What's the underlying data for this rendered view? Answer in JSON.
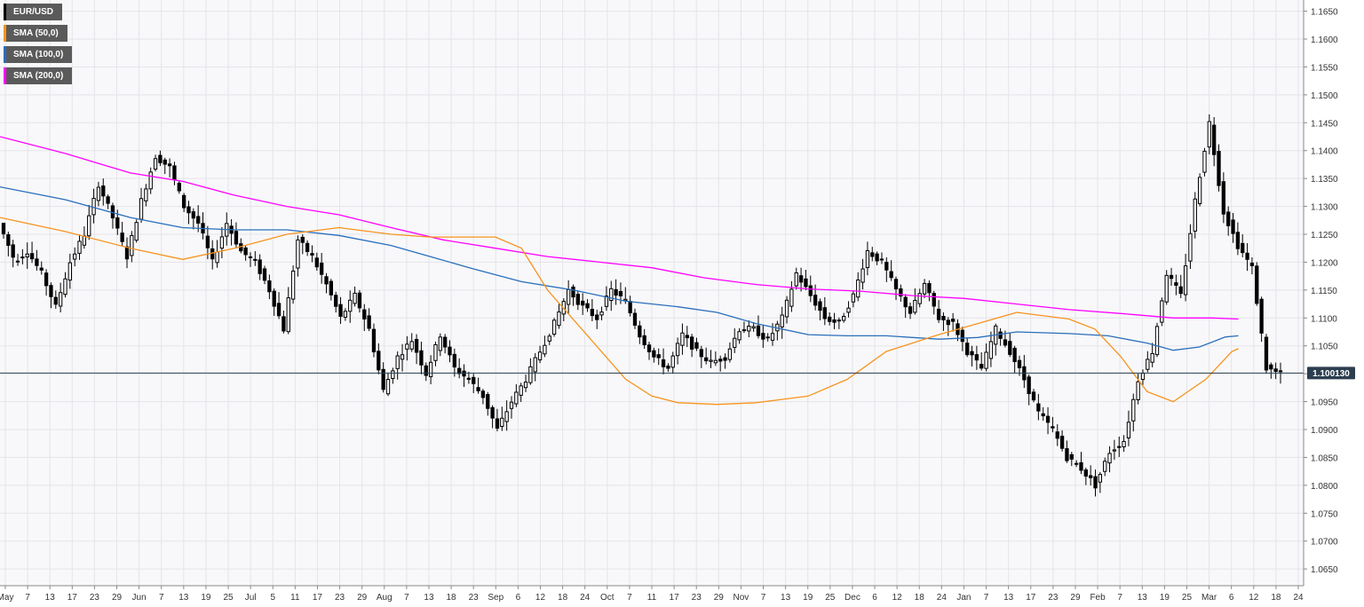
{
  "legend": [
    {
      "label": "EUR/USD",
      "color": "#000000"
    },
    {
      "label": "SMA (50,0)",
      "color": "#f7931e"
    },
    {
      "label": "SMA (100,0)",
      "color": "#2a6ebb"
    },
    {
      "label": "SMA (200,0)",
      "color": "#ff00ff"
    }
  ],
  "last_price": {
    "label": "1.100130",
    "value": 1.10013,
    "color": "#2c3e50"
  },
  "chart_data": {
    "type": "candlestick",
    "title": "",
    "ylim": [
      1.062,
      1.167
    ],
    "grid": true,
    "y_ticks": [
      1.165,
      1.16,
      1.155,
      1.15,
      1.145,
      1.14,
      1.135,
      1.13,
      1.125,
      1.12,
      1.115,
      1.11,
      1.105,
      1.1,
      1.095,
      1.09,
      1.085,
      1.08,
      1.075,
      1.07,
      1.065
    ],
    "y_tick_labels": [
      "1.1650",
      "1.1600",
      "1.1550",
      "1.1500",
      "1.1450",
      "1.1400",
      "1.1350",
      "1.1300",
      "1.1250",
      "1.1200",
      "1.1150",
      "1.1100",
      "1.1050",
      "1.1000",
      "1.0950",
      "1.0900",
      "1.0850",
      "1.0800",
      "1.0750",
      "1.0700",
      "1.0650"
    ],
    "x_tick_labels": [
      "May",
      "7",
      "13",
      "17",
      "23",
      "29",
      "Jun",
      "7",
      "13",
      "19",
      "25",
      "Jul",
      "5",
      "11",
      "17",
      "23",
      "29",
      "Aug",
      "7",
      "13",
      "18",
      "23",
      "Sep",
      "6",
      "12",
      "18",
      "24",
      "Oct",
      "7",
      "11",
      "17",
      "23",
      "29",
      "Nov",
      "7",
      "13",
      "19",
      "25",
      "Dec",
      "6",
      "12",
      "18",
      "24",
      "Jan",
      "7",
      "13",
      "17",
      "23",
      "29",
      "Feb",
      "7",
      "13",
      "19",
      "25",
      "Mar",
      "6",
      "12",
      "18",
      "24"
    ],
    "ohlc_anchors": [
      [
        1.127,
        1.127,
        1.117,
        1.121
      ],
      [
        1.12,
        1.125,
        1.118,
        1.122
      ],
      [
        1.122,
        1.126,
        1.115,
        1.118
      ],
      [
        1.118,
        1.12,
        1.108,
        1.112
      ],
      [
        1.112,
        1.122,
        1.111,
        1.12
      ],
      [
        1.12,
        1.129,
        1.118,
        1.125
      ],
      [
        1.125,
        1.135,
        1.124,
        1.134
      ],
      [
        1.134,
        1.135,
        1.126,
        1.128
      ],
      [
        1.128,
        1.13,
        1.118,
        1.121
      ],
      [
        1.121,
        1.135,
        1.12,
        1.131
      ],
      [
        1.131,
        1.141,
        1.13,
        1.139
      ],
      [
        1.139,
        1.14,
        1.133,
        1.137
      ],
      [
        1.137,
        1.138,
        1.129,
        1.13
      ],
      [
        1.13,
        1.131,
        1.125,
        1.127
      ],
      [
        1.127,
        1.129,
        1.118,
        1.12
      ],
      [
        1.12,
        1.129,
        1.119,
        1.127
      ],
      [
        1.127,
        1.128,
        1.12,
        1.122
      ],
      [
        1.122,
        1.125,
        1.118,
        1.12
      ],
      [
        1.12,
        1.122,
        1.112,
        1.115
      ],
      [
        1.115,
        1.117,
        1.104,
        1.108
      ],
      [
        1.108,
        1.125,
        1.103,
        1.124
      ],
      [
        1.124,
        1.125,
        1.12,
        1.121
      ],
      [
        1.121,
        1.122,
        1.114,
        1.116
      ],
      [
        1.116,
        1.117,
        1.108,
        1.11
      ],
      [
        1.11,
        1.116,
        1.107,
        1.114
      ],
      [
        1.114,
        1.115,
        1.106,
        1.108
      ],
      [
        1.108,
        1.109,
        1.094,
        1.097
      ],
      [
        1.097,
        1.104,
        1.093,
        1.103
      ],
      [
        1.103,
        1.108,
        1.1,
        1.106
      ],
      [
        1.106,
        1.11,
        1.097,
        1.1
      ],
      [
        1.1,
        1.11,
        1.093,
        1.107
      ],
      [
        1.107,
        1.108,
        1.099,
        1.101
      ],
      [
        1.101,
        1.104,
        1.096,
        1.099
      ],
      [
        1.099,
        1.1,
        1.094,
        1.096
      ],
      [
        1.096,
        1.097,
        1.088,
        1.09
      ],
      [
        1.09,
        1.097,
        1.089,
        1.095
      ],
      [
        1.095,
        1.1,
        1.094,
        1.099
      ],
      [
        1.099,
        1.105,
        1.098,
        1.104
      ],
      [
        1.104,
        1.111,
        1.103,
        1.109
      ],
      [
        1.109,
        1.118,
        1.108,
        1.115
      ],
      [
        1.115,
        1.116,
        1.11,
        1.112
      ],
      [
        1.112,
        1.114,
        1.108,
        1.11
      ],
      [
        1.11,
        1.117,
        1.109,
        1.115
      ],
      [
        1.115,
        1.118,
        1.112,
        1.113
      ],
      [
        1.113,
        1.114,
        1.105,
        1.107
      ],
      [
        1.107,
        1.108,
        1.102,
        1.103
      ],
      [
        1.103,
        1.105,
        1.099,
        1.101
      ],
      [
        1.101,
        1.109,
        1.1,
        1.107
      ],
      [
        1.107,
        1.109,
        1.103,
        1.104
      ],
      [
        1.104,
        1.105,
        1.101,
        1.102
      ],
      [
        1.102,
        1.105,
        1.099,
        1.103
      ],
      [
        1.103,
        1.11,
        1.102,
        1.108
      ],
      [
        1.108,
        1.111,
        1.106,
        1.108
      ],
      [
        1.108,
        1.113,
        1.104,
        1.106
      ],
      [
        1.106,
        1.112,
        1.105,
        1.11
      ],
      [
        1.11,
        1.12,
        1.109,
        1.118
      ],
      [
        1.118,
        1.119,
        1.112,
        1.114
      ],
      [
        1.114,
        1.116,
        1.108,
        1.11
      ],
      [
        1.11,
        1.111,
        1.108,
        1.109
      ],
      [
        1.109,
        1.115,
        1.109,
        1.114
      ],
      [
        1.114,
        1.124,
        1.113,
        1.122
      ],
      [
        1.122,
        1.123,
        1.119,
        1.12
      ],
      [
        1.12,
        1.121,
        1.113,
        1.115
      ],
      [
        1.115,
        1.116,
        1.109,
        1.111
      ],
      [
        1.111,
        1.117,
        1.11,
        1.116
      ],
      [
        1.116,
        1.117,
        1.109,
        1.11
      ],
      [
        1.11,
        1.111,
        1.106,
        1.109
      ],
      [
        1.109,
        1.11,
        1.103,
        1.104
      ],
      [
        1.104,
        1.105,
        1.1,
        1.101
      ],
      [
        1.101,
        1.109,
        1.1,
        1.108
      ],
      [
        1.108,
        1.109,
        1.103,
        1.104
      ],
      [
        1.104,
        1.105,
        1.097,
        1.099
      ],
      [
        1.099,
        1.1,
        1.091,
        1.093
      ],
      [
        1.093,
        1.094,
        1.088,
        1.09
      ],
      [
        1.09,
        1.091,
        1.084,
        1.085
      ],
      [
        1.085,
        1.086,
        1.081,
        1.083
      ],
      [
        1.083,
        1.084,
        1.078,
        1.08
      ],
      [
        1.08,
        1.087,
        1.078,
        1.086
      ],
      [
        1.086,
        1.089,
        1.084,
        1.088
      ],
      [
        1.088,
        1.1,
        1.087,
        1.099
      ],
      [
        1.099,
        1.106,
        1.098,
        1.104
      ],
      [
        1.104,
        1.12,
        1.103,
        1.118
      ],
      [
        1.118,
        1.124,
        1.11,
        1.114
      ],
      [
        1.114,
        1.134,
        1.113,
        1.131
      ],
      [
        1.131,
        1.149,
        1.129,
        1.145
      ],
      [
        1.145,
        1.146,
        1.127,
        1.129
      ],
      [
        1.129,
        1.13,
        1.118,
        1.123
      ],
      [
        1.123,
        1.125,
        1.109,
        1.119
      ],
      [
        1.119,
        1.12,
        1.1,
        1.101
      ],
      [
        1.101,
        1.102,
        1.096,
        1.1
      ]
    ],
    "sma50_anchors": [
      [
        0,
        1.128
      ],
      [
        0.05,
        1.1255
      ],
      [
        0.1,
        1.1225
      ],
      [
        0.14,
        1.1205
      ],
      [
        0.18,
        1.1225
      ],
      [
        0.22,
        1.125
      ],
      [
        0.26,
        1.1262
      ],
      [
        0.3,
        1.125
      ],
      [
        0.33,
        1.1245
      ],
      [
        0.36,
        1.1245
      ],
      [
        0.38,
        1.1245
      ],
      [
        0.4,
        1.1225
      ],
      [
        0.42,
        1.115
      ],
      [
        0.45,
        1.107
      ],
      [
        0.48,
        1.099
      ],
      [
        0.5,
        1.096
      ],
      [
        0.52,
        1.0948
      ],
      [
        0.55,
        1.0945
      ],
      [
        0.58,
        1.0948
      ],
      [
        0.62,
        1.096
      ],
      [
        0.65,
        1.099
      ],
      [
        0.68,
        1.104
      ],
      [
        0.72,
        1.107
      ],
      [
        0.75,
        1.109
      ],
      [
        0.78,
        1.111
      ],
      [
        0.82,
        1.1098
      ],
      [
        0.84,
        1.108
      ],
      [
        0.86,
        1.103
      ],
      [
        0.88,
        1.0968
      ],
      [
        0.9,
        1.095
      ],
      [
        0.925,
        1.099
      ],
      [
        0.945,
        1.104
      ],
      [
        0.95,
        1.1045
      ]
    ],
    "sma100_anchors": [
      [
        0,
        1.1335
      ],
      [
        0.05,
        1.1312
      ],
      [
        0.1,
        1.128
      ],
      [
        0.14,
        1.1262
      ],
      [
        0.18,
        1.1258
      ],
      [
        0.22,
        1.1258
      ],
      [
        0.26,
        1.1248
      ],
      [
        0.3,
        1.123
      ],
      [
        0.33,
        1.121
      ],
      [
        0.36,
        1.119
      ],
      [
        0.4,
        1.1165
      ],
      [
        0.44,
        1.115
      ],
      [
        0.48,
        1.113
      ],
      [
        0.52,
        1.112
      ],
      [
        0.55,
        1.111
      ],
      [
        0.58,
        1.109
      ],
      [
        0.62,
        1.107
      ],
      [
        0.65,
        1.1068
      ],
      [
        0.68,
        1.1068
      ],
      [
        0.72,
        1.1062
      ],
      [
        0.75,
        1.1065
      ],
      [
        0.78,
        1.1075
      ],
      [
        0.82,
        1.1072
      ],
      [
        0.85,
        1.1068
      ],
      [
        0.88,
        1.1055
      ],
      [
        0.9,
        1.1042
      ],
      [
        0.92,
        1.1048
      ],
      [
        0.94,
        1.1066
      ],
      [
        0.95,
        1.1068
      ]
    ],
    "sma200_anchors": [
      [
        0,
        1.1425
      ],
      [
        0.05,
        1.1395
      ],
      [
        0.1,
        1.136
      ],
      [
        0.14,
        1.1345
      ],
      [
        0.18,
        1.132
      ],
      [
        0.22,
        1.13
      ],
      [
        0.26,
        1.1285
      ],
      [
        0.3,
        1.1262
      ],
      [
        0.34,
        1.124
      ],
      [
        0.38,
        1.1225
      ],
      [
        0.42,
        1.121
      ],
      [
        0.46,
        1.12
      ],
      [
        0.5,
        1.119
      ],
      [
        0.54,
        1.1172
      ],
      [
        0.58,
        1.116
      ],
      [
        0.62,
        1.1152
      ],
      [
        0.66,
        1.1148
      ],
      [
        0.7,
        1.114
      ],
      [
        0.74,
        1.1135
      ],
      [
        0.78,
        1.1125
      ],
      [
        0.82,
        1.1115
      ],
      [
        0.86,
        1.1108
      ],
      [
        0.9,
        1.11
      ],
      [
        0.93,
        1.11
      ],
      [
        0.95,
        1.1098
      ]
    ]
  }
}
